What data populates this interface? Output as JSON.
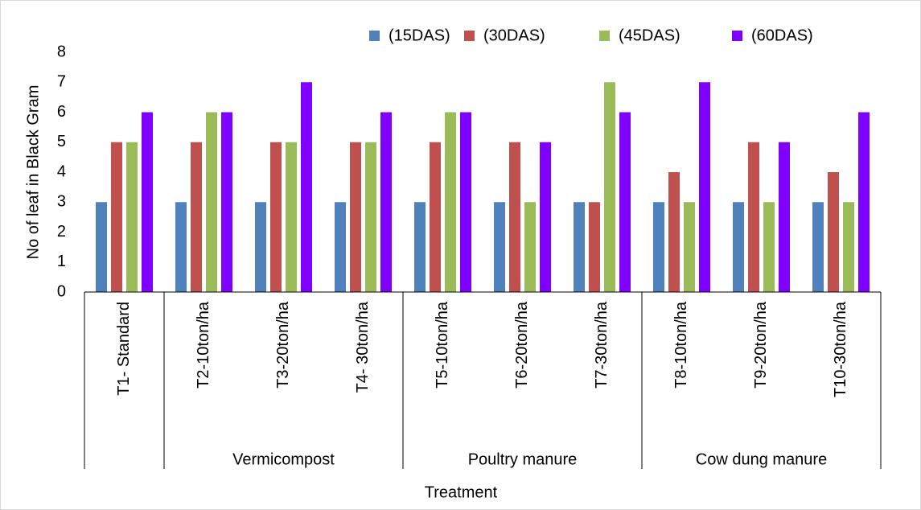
{
  "chart_data": {
    "type": "bar",
    "y_label": "No of leaf in Black Gram",
    "x_label": "Treatment",
    "categories": [
      "T1- Standard",
      "T2-10ton/ha",
      "T3-20ton/ha",
      "T4- 30ton/ha",
      "T5-10ton/ha",
      "T6-20ton/ha",
      "T7-30ton/ha",
      "T8-10ton/ha",
      "T9-20ton/ha",
      "T10-30ton/ha"
    ],
    "groups": [
      null,
      "Vermicompost",
      "Vermicompost",
      "Vermicompost",
      "Poultry manure",
      "Poultry manure",
      "Poultry manure",
      "Cow dung manure",
      "Cow dung manure",
      "Cow dung manure"
    ],
    "series": [
      {
        "name": "(15DAS)",
        "color": "#4f81bd",
        "values": [
          3,
          3,
          3,
          3,
          3,
          3,
          3,
          3,
          3,
          3
        ]
      },
      {
        "name": "(30DAS)",
        "color": "#c0504d",
        "values": [
          5,
          5,
          5,
          5,
          5,
          5,
          3,
          4,
          5,
          4
        ]
      },
      {
        "name": "(45DAS)",
        "color": "#9bbb59",
        "values": [
          5,
          6,
          5,
          5,
          6,
          3,
          7,
          3,
          3,
          3
        ]
      },
      {
        "name": "(60DAS)",
        "color": "#7f00ff",
        "values": [
          6,
          6,
          7,
          6,
          6,
          5,
          6,
          7,
          5,
          6
        ]
      }
    ],
    "ylim": [
      0,
      8
    ],
    "yticks": [
      0,
      1,
      2,
      3,
      4,
      5,
      6,
      7,
      8
    ],
    "legend": "top-right",
    "grid": false
  }
}
